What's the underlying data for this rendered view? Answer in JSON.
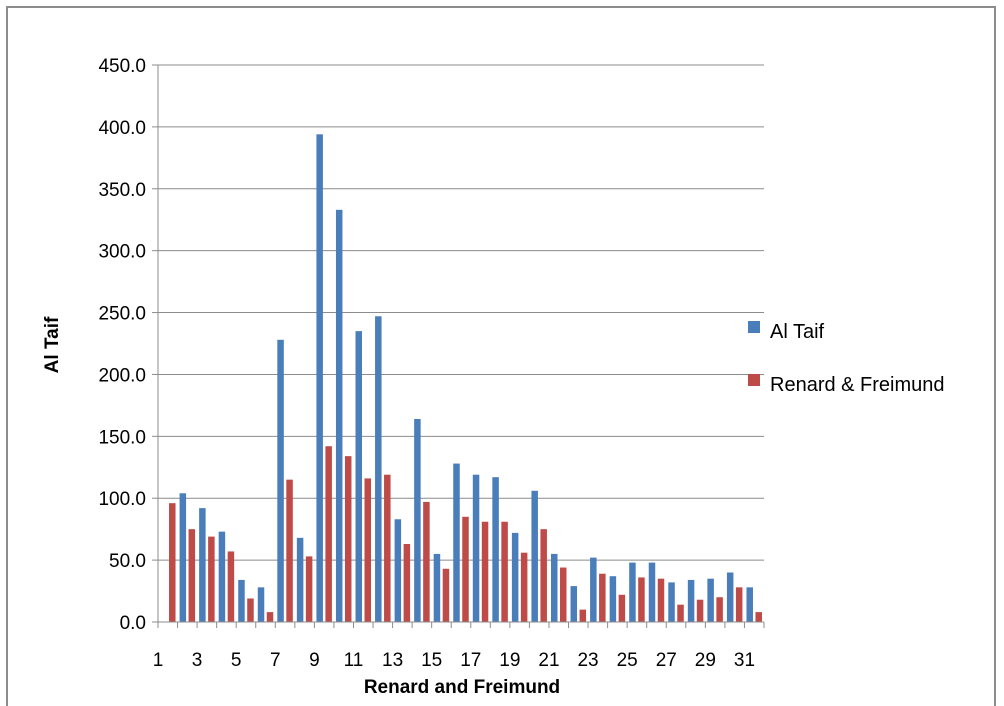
{
  "chart_data": {
    "type": "bar",
    "title": "",
    "xlabel": "Renard and Freimund",
    "ylabel": "Al Taif",
    "ylim": [
      0,
      450
    ],
    "y_ticks": [
      "0.0",
      "50.0",
      "100.0",
      "150.0",
      "200.0",
      "250.0",
      "300.0",
      "350.0",
      "400.0",
      "450.0"
    ],
    "categories": [
      1,
      2,
      3,
      4,
      5,
      6,
      7,
      8,
      9,
      10,
      11,
      12,
      13,
      14,
      15,
      16,
      17,
      18,
      19,
      20,
      21,
      22,
      23,
      24,
      25,
      26,
      27,
      28,
      29,
      30,
      31
    ],
    "x_tick_labels": [
      "1",
      "3",
      "5",
      "7",
      "9",
      "11",
      "13",
      "15",
      "17",
      "19",
      "21",
      "23",
      "25",
      "27",
      "29",
      "31"
    ],
    "grid": true,
    "legend_position": "right",
    "series": [
      {
        "name": "Al Taif",
        "color": "#4a7ebb",
        "values": [
          0,
          104,
          92,
          73,
          34,
          28,
          228,
          68,
          394,
          333,
          235,
          247,
          83,
          164,
          55,
          128,
          119,
          117,
          72,
          106,
          55,
          29,
          52,
          37,
          48,
          48,
          32,
          34,
          35,
          40,
          28
        ]
      },
      {
        "name": "Renard & Freimund",
        "color": "#be4b48",
        "values": [
          96,
          75,
          69,
          57,
          19,
          8,
          115,
          53,
          142,
          134,
          116,
          119,
          63,
          97,
          43,
          85,
          81,
          81,
          56,
          75,
          44,
          10,
          39,
          22,
          36,
          35,
          14,
          18,
          20,
          28,
          8
        ]
      }
    ]
  }
}
